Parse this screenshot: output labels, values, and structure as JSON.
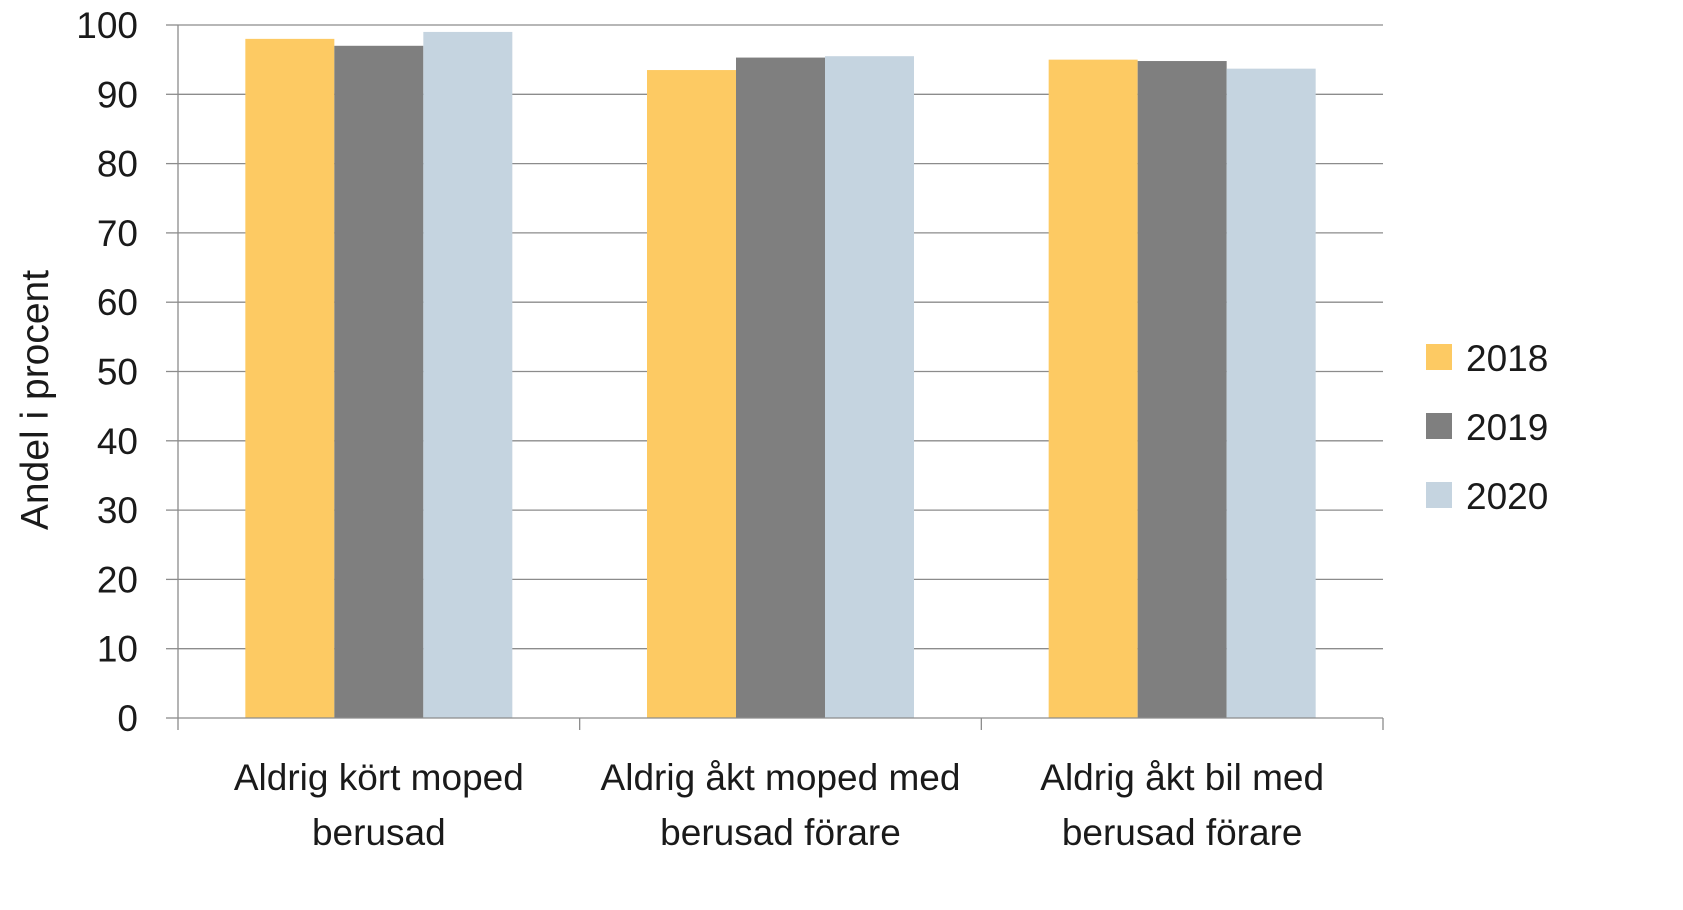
{
  "chart_data": {
    "type": "bar",
    "title": "",
    "xlabel": "",
    "ylabel": "Andel i procent",
    "ylim": [
      0,
      100
    ],
    "yticks": [
      "0",
      "10",
      "20",
      "30",
      "40",
      "50",
      "60",
      "70",
      "80",
      "90",
      "100"
    ],
    "grid": true,
    "legend_position": "right",
    "categories": [
      [
        "Aldrig kört moped",
        "berusad"
      ],
      [
        "Aldrig åkt moped med",
        "berusad förare"
      ],
      [
        "Aldrig åkt bil med",
        "berusad förare"
      ]
    ],
    "series": [
      {
        "name": "2018",
        "color": "#FDCA63",
        "values": [
          98.0,
          93.5,
          95.0
        ]
      },
      {
        "name": "2019",
        "color": "#7F7F7F",
        "values": [
          97.0,
          95.3,
          94.8
        ]
      },
      {
        "name": "2020",
        "color": "#C5D4E0",
        "values": [
          99.0,
          95.5,
          93.7
        ]
      }
    ]
  }
}
